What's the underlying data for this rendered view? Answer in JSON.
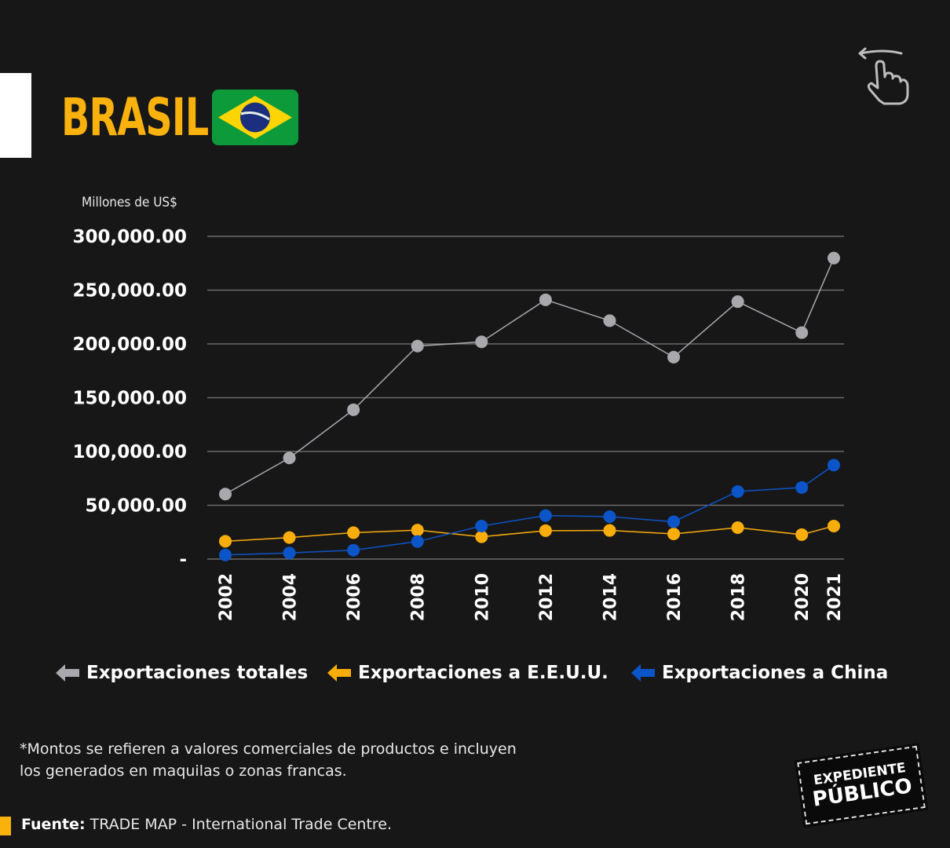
{
  "header": {
    "title": "BRASIL",
    "flag": "brazil-flag",
    "swipe_hint_icon": "swipe-left-hand-icon"
  },
  "colors": {
    "background": "#181718",
    "accent": "#f9b10e",
    "total": "#a8a8ad",
    "usa": "#f9ad0b",
    "china": "#0b55c8",
    "grid": "#6a6a6a"
  },
  "chart_data": {
    "type": "line",
    "title": "BRASIL",
    "ylabel": "Millones de US$",
    "xlabel": "",
    "x": [
      "2002",
      "2004",
      "2006",
      "2008",
      "2010",
      "2012",
      "2014",
      "2016",
      "2018",
      "2020",
      "2021"
    ],
    "ylim": [
      0,
      300000
    ],
    "yticks": [
      0,
      50000,
      100000,
      150000,
      200000,
      250000,
      300000
    ],
    "ytick_labels": [
      "-",
      "50,000.00",
      "100,000.00",
      "150,000.00",
      "200,000.00",
      "250,000.00",
      "300,000.00"
    ],
    "grid": true,
    "legend_position": "bottom",
    "series": [
      {
        "name": "Exportaciones totales",
        "color": "#a8a8ad",
        "values": [
          60400,
          94000,
          138800,
          198000,
          201900,
          241000,
          221600,
          187700,
          239300,
          210500,
          279800
        ]
      },
      {
        "name": "Exportaciones a E.E.U.U.",
        "color": "#f9ad0b",
        "values": [
          16500,
          20000,
          24500,
          26900,
          20700,
          26400,
          26600,
          23400,
          29200,
          22700,
          30700
        ]
      },
      {
        "name": "Exportaciones a China",
        "color": "#0b55c8",
        "values": [
          3800,
          5700,
          8200,
          16300,
          30700,
          40400,
          39400,
          34700,
          62800,
          66500,
          87300
        ]
      }
    ]
  },
  "footer": {
    "note_line1": "*Montos se refieren a valores comerciales de productos e incluyen",
    "note_line2": "los generados en maquilas o zonas francas.",
    "source_label": "Fuente:",
    "source_text": " TRADE MAP - International Trade Centre.",
    "logo_line1": "EXPEDIENTE",
    "logo_line2": "PÚBLICO"
  }
}
